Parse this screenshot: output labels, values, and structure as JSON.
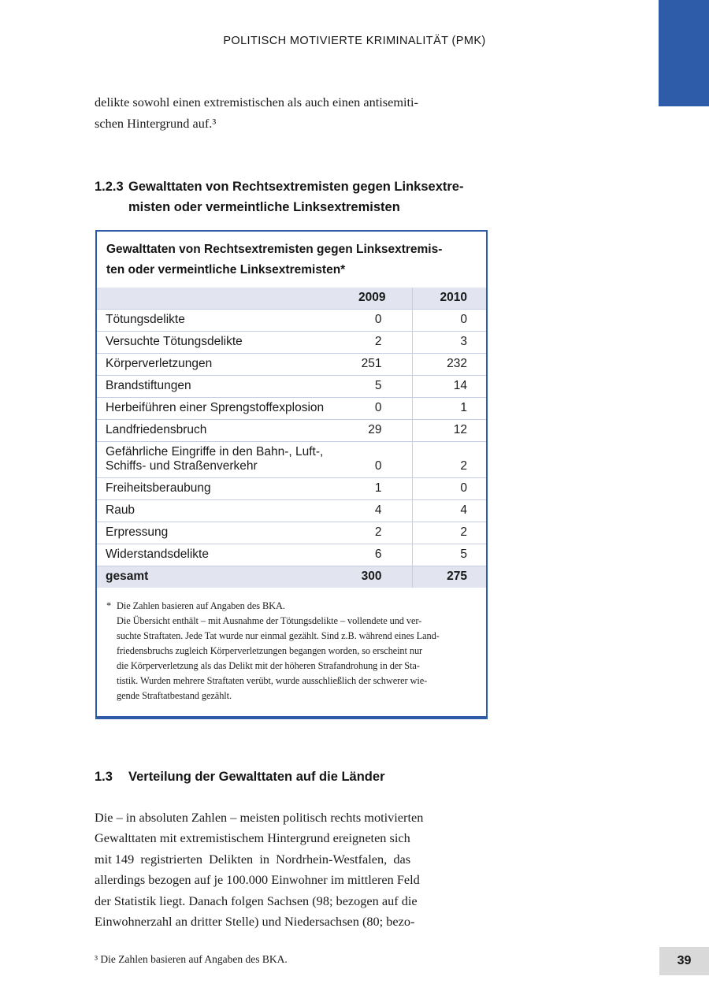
{
  "page": {
    "header_title": "POLITISCH MOTIVIERTE KRIMINALITÄT (PMK)",
    "page_number": "39",
    "accent_color": "#2e5ca9",
    "shaded_row_color": "#e2e5f0",
    "page_number_box_color": "#d9d9d9"
  },
  "intro_paragraph": {
    "lines": [
      "delikte sowohl einen extremistischen als auch einen antisemiti-",
      "schen Hintergrund auf.³"
    ]
  },
  "section_123": {
    "number": "1.2.3",
    "title_lines": [
      "Gewalttaten von Rechtsextremisten gegen Linksextre-",
      "misten oder vermeintliche Linksextremisten"
    ]
  },
  "table": {
    "title_lines": [
      "Gewalttaten von Rechtsextremisten gegen Linksextremis-",
      "ten oder vermeintliche Linksextremisten*"
    ],
    "columns": {
      "col_2009": "2009",
      "col_2010": "2010"
    },
    "rows": [
      {
        "label": "Tötungsdelikte",
        "v2009": "0",
        "v2010": "0"
      },
      {
        "label": "Versuchte Tötungsdelikte",
        "v2009": "2",
        "v2010": "3"
      },
      {
        "label": "Körperverletzungen",
        "v2009": "251",
        "v2010": "232"
      },
      {
        "label": "Brandstiftungen",
        "v2009": "5",
        "v2010": "14"
      },
      {
        "label": "Herbeiführen einer Sprengstoffexplosion",
        "v2009": "0",
        "v2010": "1"
      },
      {
        "label": "Landfriedensbruch",
        "v2009": "29",
        "v2010": "12"
      },
      {
        "label": [
          "Gefährliche Eingriffe in den Bahn-, Luft-,",
          "Schiffs- und Straßenverkehr"
        ],
        "v2009": "0",
        "v2010": "2"
      },
      {
        "label": "Freiheitsberaubung",
        "v2009": "1",
        "v2010": "0"
      },
      {
        "label": "Raub",
        "v2009": "4",
        "v2010": "4"
      },
      {
        "label": "Erpressung",
        "v2009": "2",
        "v2010": "2"
      },
      {
        "label": "Widerstandsdelikte",
        "v2009": "6",
        "v2010": "5"
      }
    ],
    "total_row": {
      "label": "gesamt",
      "v2009": "300",
      "v2010": "275"
    },
    "footnote": {
      "marker": "*",
      "line1": "Die Zahlen basieren auf Angaben des BKA.",
      "body_lines": [
        "Die Übersicht enthält – mit Ausnahme der Tötungsdelikte – vollendete und ver-",
        "suchte Straftaten. Jede Tat wurde nur einmal gezählt. Sind z.B. während eines Land-",
        "friedensbruchs zugleich Körperverletzungen begangen worden, so erscheint nur",
        "die Körperverletzung als das Delikt mit der höheren Strafandrohung in der Sta-",
        "tistik. Wurden mehrere Straftaten verübt, wurde ausschließlich der schwerer wie-"
      ],
      "last_line": "gende Straftatbestand gezählt."
    }
  },
  "section_13": {
    "number": "1.3",
    "title": "Verteilung der Gewalttaten auf die Länder"
  },
  "body_paragraph": {
    "lines": [
      "Die – in absoluten Zahlen – meisten politisch rechts motivierten",
      "Gewalttaten mit extremistischem Hintergrund ereigneten sich",
      "mit 149  registrierten  Delikten  in  Nordrhein-Westfalen,  das",
      "allerdings bezogen auf je 100.000 Einwohner im mittleren Feld",
      "der Statistik liegt. Danach folgen Sachsen (98; bezogen auf die",
      "Einwohnerzahl an dritter Stelle) und Niedersachsen (80; bezo-"
    ]
  },
  "footnote_3": "³ Die Zahlen basieren auf Angaben des BKA."
}
